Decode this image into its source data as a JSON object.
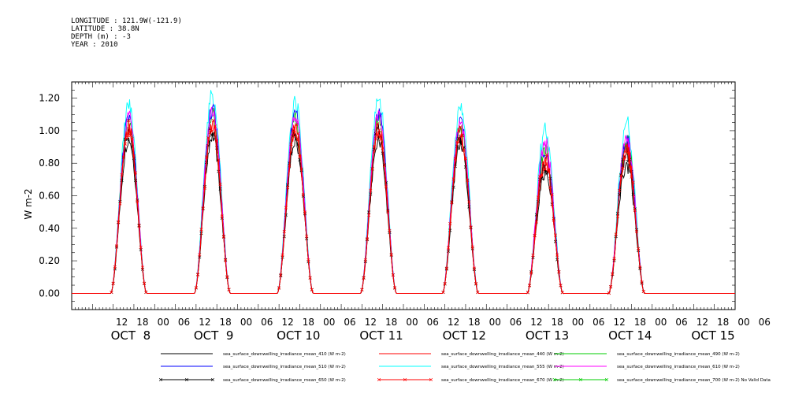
{
  "header": {
    "longitude": "LONGITUDE : 121.9W(-121.9)",
    "latitude": "LATITUDE : 38.8N",
    "depth": "DEPTH (m) : -3",
    "year": "YEAR : 2010"
  },
  "chart_data": {
    "type": "line",
    "ylabel": "W m-2",
    "ylim": [
      -0.1,
      1.3
    ],
    "xlim_hours": [
      0,
      192
    ],
    "y_ticks": [
      "0.00",
      "0.20",
      "0.40",
      "0.60",
      "0.80",
      "1.00",
      "1.20"
    ],
    "x_hour_ticks": [
      "12",
      "18",
      "00",
      "06",
      "12",
      "18",
      "00",
      "06",
      "12",
      "18",
      "00",
      "06",
      "12",
      "18",
      "00",
      "06",
      "12",
      "18",
      "00",
      "06",
      "12",
      "18",
      "00",
      "06",
      "12",
      "18",
      "00",
      "06",
      "12",
      "18",
      "00",
      "06"
    ],
    "x_hour_tick_hours": [
      12,
      18,
      24,
      30,
      36,
      42,
      48,
      54,
      60,
      66,
      72,
      78,
      84,
      90,
      96,
      102,
      108,
      114,
      120,
      126,
      132,
      138,
      144,
      150,
      156,
      162,
      168,
      174,
      180,
      186,
      192,
      198
    ],
    "x_day_labels": [
      "OCT  8",
      "OCT  9",
      "OCT 10",
      "OCT 11",
      "OCT 12",
      "OCT 13",
      "OCT 14",
      "OCT 15"
    ],
    "x_day_label_hours": [
      12,
      36,
      60,
      84,
      108,
      132,
      156,
      180
    ],
    "day_peaks": [
      {
        "day": "OCT  8",
        "peak_hour": 16.5
      },
      {
        "day": "OCT  9",
        "peak_hour": 40.7
      },
      {
        "day": "OCT 10",
        "peak_hour": 64.7
      },
      {
        "day": "OCT 11",
        "peak_hour": 88.8
      },
      {
        "day": "OCT 12",
        "peak_hour": 112.5
      },
      {
        "day": "OCT 13",
        "peak_hour": 137.0
      },
      {
        "day": "OCT 14",
        "peak_hour": 160.6
      }
    ],
    "series": [
      {
        "name": "sea_surface_downwelling_irradiance_mean_410 (W m-2)",
        "color": "#000000",
        "marker": "none",
        "daily_peaks": [
          0.95,
          0.97,
          0.95,
          0.94,
          0.92,
          0.75,
          0.8
        ]
      },
      {
        "name": "sea_surface_downwelling_irradiance_mean_440 (W m-2)",
        "color": "#ff0000",
        "marker": "none",
        "daily_peaks": [
          1.0,
          1.02,
          1.0,
          1.0,
          0.97,
          0.8,
          0.87
        ]
      },
      {
        "name": "sea_surface_downwelling_irradiance_mean_490 (W m-2)",
        "color": "#00cc00",
        "marker": "none",
        "daily_peaks": [
          1.05,
          1.1,
          1.07,
          1.08,
          1.03,
          0.86,
          0.92
        ]
      },
      {
        "name": "sea_surface_downwelling_irradiance_mean_510 (W m-2)",
        "color": "#0000ff",
        "marker": "none",
        "daily_peaks": [
          1.07,
          1.13,
          1.1,
          1.11,
          1.06,
          0.88,
          0.94
        ]
      },
      {
        "name": "sea_surface_downwelling_irradiance_mean_555 (W m-2)",
        "color": "#00ffff",
        "marker": "none",
        "daily_peaks": [
          1.16,
          1.22,
          1.18,
          1.2,
          1.15,
          0.98,
          1.03
        ]
      },
      {
        "name": "sea_surface_downwelling_irradiance_mean_610 (W m-2)",
        "color": "#ff00ff",
        "marker": "none",
        "daily_peaks": [
          1.08,
          1.13,
          1.09,
          1.1,
          1.06,
          0.92,
          0.95
        ]
      },
      {
        "name": "sea_surface_downwelling_irradiance_mean_650 (W m-2)",
        "color": "#000000",
        "marker": "x",
        "daily_peaks": [
          1.0,
          1.01,
          0.99,
          1.0,
          0.96,
          0.8,
          0.86
        ]
      },
      {
        "name": "sea_surface_downwelling_irradiance_mean_670 (W m-2)",
        "color": "#ff0000",
        "marker": "x",
        "daily_peaks": [
          1.02,
          1.04,
          1.01,
          1.03,
          0.99,
          0.82,
          0.88
        ]
      },
      {
        "name": "sea_surface_downwelling_irradiance_mean_700 (W m-2) No Valid Data",
        "color": "#00cc00",
        "marker": "x",
        "daily_peaks": null
      }
    ],
    "grid": false,
    "legend_placement": "bottom"
  }
}
